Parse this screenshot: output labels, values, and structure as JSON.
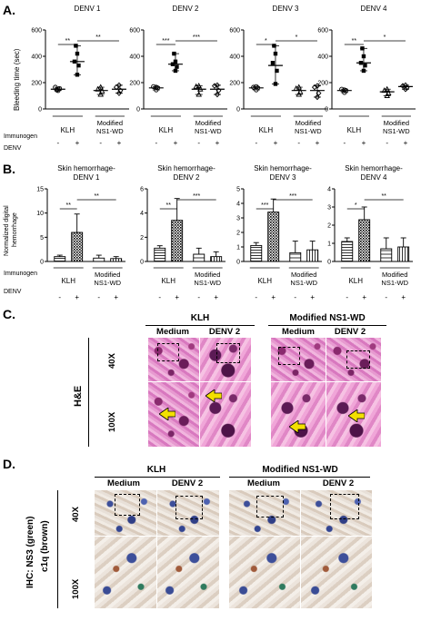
{
  "panels": {
    "A": "A.",
    "B": "B.",
    "C": "C.",
    "D": "D."
  },
  "panel_a": {
    "ylabel": "Bleeding time (sec)",
    "immunogen_label": "Immunogen",
    "denv_label": "DENV",
    "group_klh": "KLH",
    "group_mod_1": "Modified",
    "group_mod_2": "NS1-WD",
    "signs": [
      "-",
      "+",
      "-",
      "+"
    ],
    "titles": [
      "DENV 1",
      "DENV 2",
      "DENV 3",
      "DENV 4"
    ]
  },
  "panel_b": {
    "ylabel_1": "Normalized digital",
    "ylabel_2": "hemorrhage",
    "immunogen_label": "Immunogen",
    "denv_label": "DENV",
    "group_klh": "KLH",
    "group_mod_1": "Modified",
    "group_mod_2": "NS1-WD",
    "signs": [
      "-",
      "+",
      "-",
      "+"
    ],
    "titles_1": [
      "Skin hemorrhage-",
      "Skin hemorrhage-",
      "Skin hemorrhage-",
      "Skin hemorrhage-"
    ],
    "titles_2": [
      "DENV 1",
      "DENV 2",
      "DENV 3",
      "DENV 4"
    ]
  },
  "panel_c": {
    "klh": "KLH",
    "modified": "Modified NS1-WD",
    "medium": "Medium",
    "denv2": "DENV 2",
    "row40": "40X",
    "row100": "100X",
    "stain": "H&E"
  },
  "panel_d": {
    "klh": "KLH",
    "modified": "Modified NS1-WD",
    "medium": "Medium",
    "denv2": "DENV 2",
    "row40": "40X",
    "row100": "100X",
    "stain_1": "IHC: NS3 (green)",
    "stain_2": "c1q (brown)"
  },
  "chart_data": [
    {
      "type": "scatter",
      "title": "DENV 1",
      "ylabel": "Bleeding time (sec)",
      "ylim": [
        0,
        600
      ],
      "yticks": [
        "0",
        "200",
        "400",
        "600"
      ],
      "significance": [
        "**",
        "**"
      ],
      "groups": [
        {
          "immunogen": "KLH",
          "denv": "-",
          "mean": 150,
          "points": [
            140,
            155,
            165,
            150,
            145
          ]
        },
        {
          "immunogen": "KLH",
          "denv": "+",
          "mean": 360,
          "points": [
            260,
            330,
            360,
            420,
            480
          ]
        },
        {
          "immunogen": "Modified NS1-WD",
          "denv": "-",
          "mean": 140,
          "points": [
            110,
            135,
            150,
            165
          ]
        },
        {
          "immunogen": "Modified NS1-WD",
          "denv": "+",
          "mean": 150,
          "points": [
            120,
            140,
            165,
            180
          ]
        }
      ]
    },
    {
      "type": "scatter",
      "title": "DENV 2",
      "ylim": [
        0,
        600
      ],
      "yticks": [
        "0",
        "200",
        "400",
        "600"
      ],
      "significance": [
        "***",
        "***"
      ],
      "groups": [
        {
          "immunogen": "KLH",
          "denv": "-",
          "mean": 160,
          "points": [
            145,
            160,
            170,
            165
          ]
        },
        {
          "immunogen": "KLH",
          "denv": "+",
          "mean": 340,
          "points": [
            290,
            320,
            340,
            360,
            420
          ]
        },
        {
          "immunogen": "Modified NS1-WD",
          "denv": "-",
          "mean": 150,
          "points": [
            110,
            150,
            170,
            175
          ]
        },
        {
          "immunogen": "Modified NS1-WD",
          "denv": "+",
          "mean": 150,
          "points": [
            110,
            140,
            175,
            180
          ]
        }
      ]
    },
    {
      "type": "scatter",
      "title": "DENV 3",
      "ylim": [
        0,
        600
      ],
      "yticks": [
        "0",
        "200",
        "400",
        "600"
      ],
      "significance": [
        "*",
        "*"
      ],
      "groups": [
        {
          "immunogen": "KLH",
          "denv": "-",
          "mean": 160,
          "points": [
            145,
            160,
            165,
            170
          ]
        },
        {
          "immunogen": "KLH",
          "denv": "+",
          "mean": 330,
          "points": [
            190,
            290,
            350,
            420,
            480
          ]
        },
        {
          "immunogen": "Modified NS1-WD",
          "denv": "-",
          "mean": 140,
          "points": [
            110,
            130,
            155,
            165
          ]
        },
        {
          "immunogen": "Modified NS1-WD",
          "denv": "+",
          "mean": 140,
          "points": [
            90,
            120,
            165,
            175
          ]
        }
      ]
    },
    {
      "type": "scatter",
      "title": "DENV 4",
      "ylim": [
        0,
        600
      ],
      "yticks": [
        "0",
        "200",
        "400",
        "600"
      ],
      "significance": [
        "**",
        "*"
      ],
      "groups": [
        {
          "immunogen": "KLH",
          "denv": "-",
          "mean": 140,
          "points": [
            125,
            140,
            150,
            145
          ]
        },
        {
          "immunogen": "KLH",
          "denv": "+",
          "mean": 350,
          "points": [
            290,
            330,
            350,
            400,
            460
          ]
        },
        {
          "immunogen": "Modified NS1-WD",
          "denv": "-",
          "mean": 130,
          "points": [
            100,
            120,
            140,
            150
          ]
        },
        {
          "immunogen": "Modified NS1-WD",
          "denv": "+",
          "mean": 170,
          "points": [
            150,
            160,
            175,
            180
          ]
        }
      ]
    },
    {
      "type": "bar",
      "title": "Skin hemorrhage-DENV 1",
      "ylabel": "Normalized digital hemorrhage",
      "ylim": [
        0,
        15
      ],
      "yticks": [
        "0",
        "5",
        "10",
        "15"
      ],
      "significance": [
        "**",
        "**"
      ],
      "categories": [
        "KLH -",
        "KLH +",
        "Modified NS1-WD -",
        "Modified NS1-WD +"
      ],
      "values": [
        1.0,
        6.0,
        0.7,
        0.6
      ],
      "errors": [
        0.3,
        3.8,
        0.6,
        0.4
      ]
    },
    {
      "type": "bar",
      "title": "Skin hemorrhage-DENV 2",
      "ylim": [
        0,
        6
      ],
      "yticks": [
        "0",
        "2",
        "4",
        "6"
      ],
      "significance": [
        "**",
        "***"
      ],
      "categories": [
        "KLH -",
        "KLH +",
        "Modified NS1-WD -",
        "Modified NS1-WD +"
      ],
      "values": [
        1.1,
        3.4,
        0.6,
        0.4
      ],
      "errors": [
        0.2,
        1.8,
        0.5,
        0.4
      ]
    },
    {
      "type": "bar",
      "title": "Skin hemorrhage-DENV 3",
      "ylim": [
        0,
        5
      ],
      "yticks": [
        "0",
        "1",
        "2",
        "3",
        "4",
        "5"
      ],
      "significance": [
        "***",
        "***"
      ],
      "categories": [
        "KLH -",
        "KLH +",
        "Modified NS1-WD -",
        "Modified NS1-WD +"
      ],
      "values": [
        1.1,
        3.4,
        0.6,
        0.8
      ],
      "errors": [
        0.2,
        0.9,
        0.8,
        0.6
      ]
    },
    {
      "type": "bar",
      "title": "Skin hemorrhage-DENV 4",
      "ylim": [
        0,
        4
      ],
      "yticks": [
        "0",
        "1",
        "2",
        "3",
        "4"
      ],
      "significance": [
        "*",
        "**"
      ],
      "categories": [
        "KLH -",
        "KLH +",
        "Modified NS1-WD -",
        "Modified NS1-WD +"
      ],
      "values": [
        1.1,
        2.3,
        0.7,
        0.8
      ],
      "errors": [
        0.2,
        0.7,
        0.6,
        0.5
      ]
    }
  ]
}
